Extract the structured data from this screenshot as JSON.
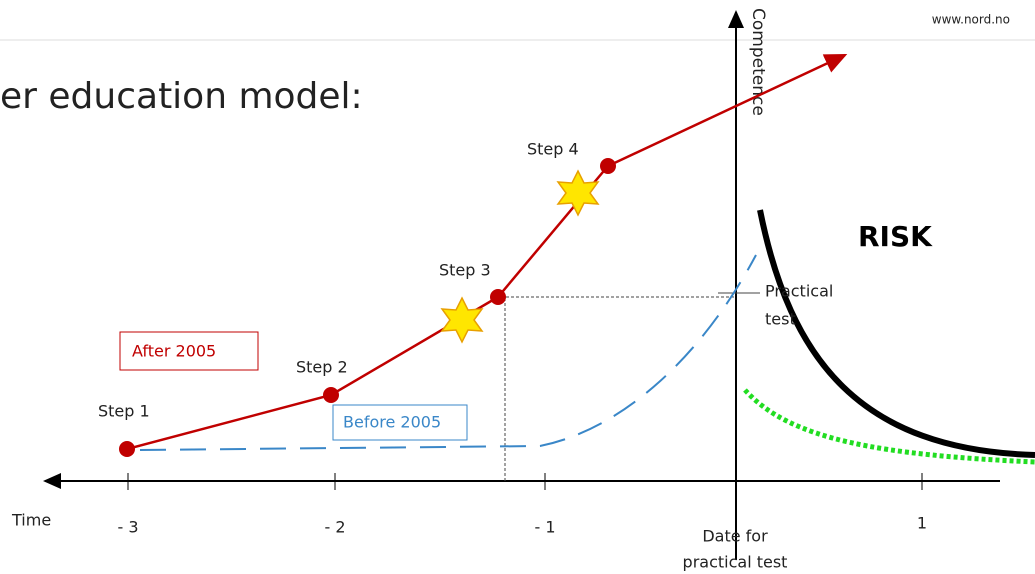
{
  "header": {
    "url": "www.nord.no"
  },
  "title": "er education model:",
  "axes": {
    "y_label": "Competence",
    "x_label": "Time",
    "x_ticks": [
      "- 3",
      "- 2",
      "- 1",
      "1"
    ],
    "origin_label": [
      "Date for",
      "practical test"
    ]
  },
  "steps": [
    "Step 1",
    "Step 2",
    "Step 3",
    "Step 4"
  ],
  "legend": {
    "after": "After 2005",
    "before": "Before 2005"
  },
  "risk": "RISK",
  "practical_test": [
    "Practical",
    "test"
  ]
}
